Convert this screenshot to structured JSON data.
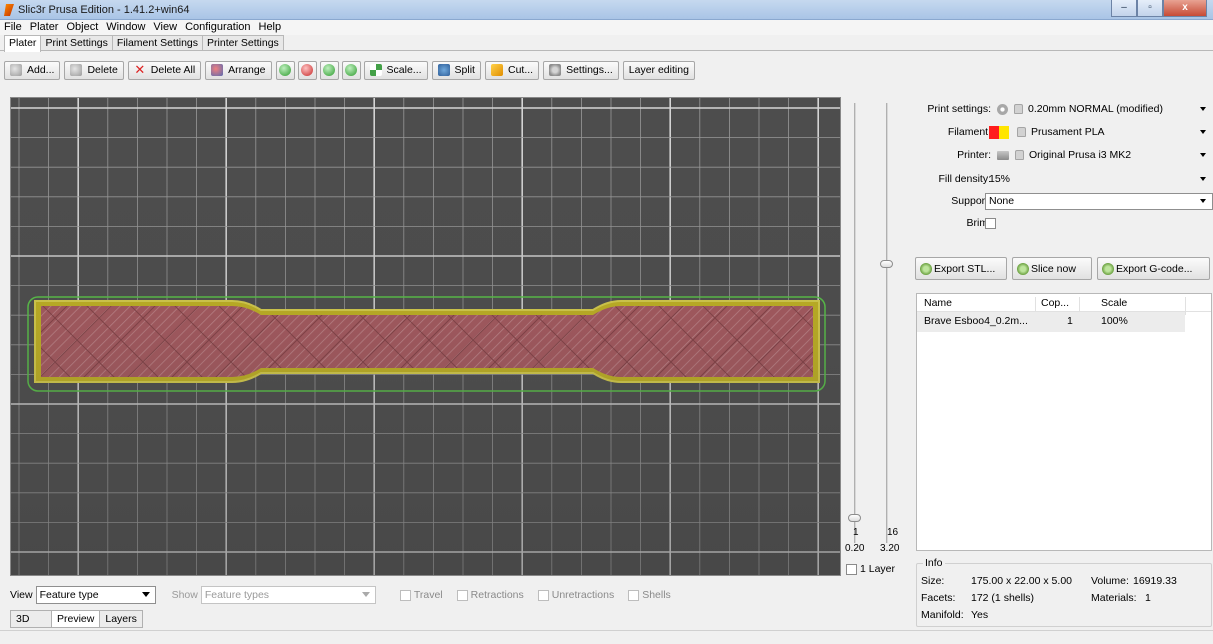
{
  "window": {
    "title": "Slic3r Prusa Edition - 1.41.2+win64",
    "minimize": "–",
    "maximize": "▫",
    "close": "x"
  },
  "menu": [
    "File",
    "Plater",
    "Object",
    "Window",
    "View",
    "Configuration",
    "Help"
  ],
  "tabs": [
    "Plater",
    "Print Settings",
    "Filament Settings",
    "Printer Settings"
  ],
  "toolbar": {
    "add": "Add...",
    "delete": "Delete",
    "delete_all": "Delete All",
    "arrange": "Arrange",
    "scale": "Scale...",
    "split": "Split",
    "cut": "Cut...",
    "settings": "Settings...",
    "layer_editing": "Layer editing"
  },
  "slider": {
    "top": "16",
    "top_height": "3.20",
    "bottom": "1",
    "bottom_height": "0.20",
    "one_layer": "1 Layer"
  },
  "view_bar": {
    "view_label": "View",
    "view_value": "Feature type",
    "show_label": "Show",
    "show_value": "Feature types",
    "travel": "Travel",
    "retractions": "Retractions",
    "unretractions": "Unretractions",
    "shells": "Shells"
  },
  "bottom_tabs": [
    "3D",
    "Preview",
    "Layers"
  ],
  "settings": {
    "print_label": "Print settings:",
    "print_value": "0.20mm NORMAL (modified)",
    "filament_label": "Filament:",
    "filament_value": "Prusament PLA",
    "printer_label": "Printer:",
    "printer_value": "Original Prusa i3 MK2",
    "fill_label": "Fill density:",
    "fill_value": "15%",
    "support_label": "Support:",
    "support_value": "None",
    "brim_label": "Brim:"
  },
  "actions": {
    "export_stl": "Export STL...",
    "slice_now": "Slice now",
    "export_gcode": "Export G-code..."
  },
  "objects": {
    "headers": [
      "Name",
      "Cop...",
      "Scale"
    ],
    "rows": [
      {
        "name": "Brave Esboo4_0.2m...",
        "copies": "1",
        "scale": "100%"
      }
    ]
  },
  "info": {
    "legend": "Info",
    "size_label": "Size:",
    "size_value": "175.00 x 22.00 x 5.00",
    "volume_label": "Volume:",
    "volume_value": "16919.33",
    "facets_label": "Facets:",
    "facets_value": "172 (1 shells)",
    "materials_label": "Materials:",
    "materials_value": "1",
    "manifold_label": "Manifold:",
    "manifold_value": "Yes"
  },
  "colors": {
    "bed": "#4d4d4d",
    "grid": "#bdbdbd",
    "infill": "#b05a60",
    "perimeter": "#d8c93a",
    "skirt": "#59c847"
  }
}
